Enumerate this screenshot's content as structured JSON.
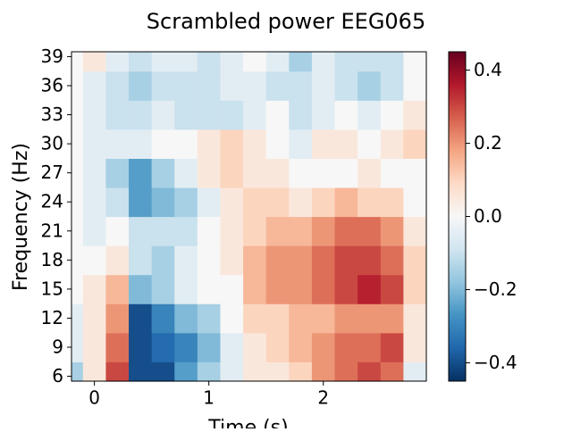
{
  "chart_data": {
    "type": "heatmap",
    "title": "Scrambled power EEG065",
    "xlabel": "Time (s)",
    "ylabel": "Frequency (Hz)",
    "xlim": [
      -0.2,
      2.9
    ],
    "ylim": [
      5.5,
      39.5
    ],
    "xticks": [
      0,
      1,
      2
    ],
    "xtick_labels": [
      "0",
      "1",
      "2"
    ],
    "yticks": [
      6,
      9,
      12,
      15,
      18,
      21,
      24,
      27,
      30,
      33,
      36,
      39
    ],
    "ytick_labels": [
      "6",
      "9",
      "12",
      "15",
      "18",
      "21",
      "24",
      "27",
      "30",
      "33",
      "36",
      "39"
    ],
    "colorbar": {
      "colormap": "RdBu_r",
      "vmin": -0.45,
      "vmax": 0.45,
      "ticks": [
        -0.4,
        -0.2,
        0.0,
        0.2,
        0.4
      ],
      "tick_labels": [
        "−0.4",
        "−0.2",
        "0.0",
        "0.2",
        "0.4"
      ]
    },
    "grid": false,
    "times": [
      -0.2,
      0.0,
      0.2,
      0.4,
      0.6,
      0.8,
      1.0,
      1.2,
      1.4,
      1.6,
      1.8,
      2.0,
      2.2,
      2.4,
      2.6,
      2.8
    ],
    "freqs": [
      6,
      9,
      12,
      15,
      18,
      21,
      24,
      27,
      30,
      33,
      36,
      39
    ],
    "values": [
      [
        -0.15,
        0.05,
        0.3,
        -0.4,
        -0.4,
        -0.25,
        -0.15,
        -0.05,
        0.05,
        0.05,
        0.1,
        0.2,
        0.25,
        0.3,
        0.25,
        -0.05
      ],
      [
        -0.05,
        0.05,
        0.25,
        -0.4,
        -0.35,
        -0.3,
        -0.2,
        -0.05,
        0.05,
        0.1,
        0.15,
        0.2,
        0.25,
        0.25,
        0.3,
        0.05
      ],
      [
        -0.05,
        0.05,
        0.2,
        -0.4,
        -0.3,
        -0.2,
        -0.15,
        0.0,
        0.1,
        0.1,
        0.15,
        0.15,
        0.2,
        0.2,
        0.2,
        0.05
      ],
      [
        0.0,
        0.05,
        0.15,
        -0.2,
        -0.15,
        -0.05,
        0.0,
        0.0,
        0.15,
        0.2,
        0.2,
        0.25,
        0.3,
        0.35,
        0.3,
        0.1
      ],
      [
        0.0,
        0.0,
        0.05,
        -0.1,
        -0.15,
        -0.05,
        0.0,
        0.05,
        0.15,
        0.2,
        0.2,
        0.25,
        0.3,
        0.3,
        0.25,
        0.1
      ],
      [
        0.0,
        -0.05,
        0.0,
        -0.1,
        -0.1,
        -0.1,
        0.0,
        0.05,
        0.1,
        0.15,
        0.15,
        0.2,
        0.25,
        0.25,
        0.2,
        0.05
      ],
      [
        0.0,
        -0.05,
        -0.1,
        -0.25,
        -0.2,
        -0.15,
        -0.05,
        0.05,
        0.1,
        0.1,
        0.05,
        0.1,
        0.15,
        0.1,
        0.1,
        0.0
      ],
      [
        0.0,
        -0.05,
        -0.15,
        -0.25,
        -0.15,
        -0.05,
        0.05,
        0.1,
        0.05,
        0.05,
        0.0,
        0.0,
        0.0,
        0.05,
        0.0,
        0.0
      ],
      [
        0.0,
        -0.05,
        -0.05,
        -0.05,
        0.0,
        0.0,
        0.05,
        0.1,
        0.05,
        0.0,
        -0.05,
        0.05,
        0.05,
        0.0,
        0.05,
        0.1
      ],
      [
        0.0,
        -0.05,
        -0.1,
        -0.1,
        -0.05,
        -0.1,
        -0.1,
        -0.1,
        -0.05,
        0.0,
        -0.1,
        -0.05,
        0.0,
        -0.05,
        0.0,
        0.05
      ],
      [
        0.0,
        -0.05,
        -0.1,
        -0.15,
        -0.1,
        -0.1,
        -0.1,
        -0.05,
        -0.05,
        -0.1,
        -0.1,
        -0.05,
        -0.1,
        -0.15,
        -0.1,
        0.0
      ],
      [
        0.0,
        0.05,
        -0.05,
        -0.1,
        -0.05,
        -0.05,
        -0.1,
        -0.05,
        0.0,
        -0.05,
        -0.15,
        -0.05,
        -0.1,
        -0.1,
        -0.1,
        0.0
      ]
    ]
  }
}
